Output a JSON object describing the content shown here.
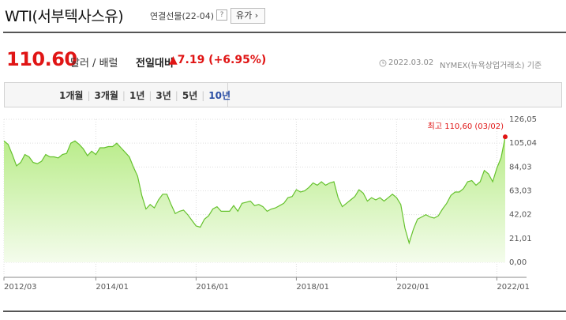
{
  "header": {
    "title": "WTI(서부텍사스유)",
    "subtitle": "연결선물(22-04)",
    "help": "?",
    "category_button": "유가"
  },
  "price": {
    "value": "110.60",
    "unit": "달러 / 배럴",
    "change_label": "전일대비",
    "change": "▲7.19 (+6.95%)",
    "timestamp": "2022.03.02",
    "source": "NYMEX(뉴욕상업거래소) 기준"
  },
  "tabs": {
    "items": [
      "1개월",
      "3개월",
      "1년",
      "3년",
      "5년",
      "10년"
    ],
    "active": 5
  },
  "chart_data": {
    "type": "area",
    "annotation": "최고 110,60 (03/02)",
    "color": "#66c22e",
    "marker_color": "#e01515",
    "xlim": [
      "2012/03",
      "2022/03"
    ],
    "xticks": [
      "2012/03",
      "2014/01",
      "2016/01",
      "2018/01",
      "2020/01",
      "2022/01"
    ],
    "ylim": [
      0,
      126.05
    ],
    "yticks": [
      {
        "value": 0,
        "label": "0,00"
      },
      {
        "value": 21.01,
        "label": "21,01"
      },
      {
        "value": 42.02,
        "label": "42,02"
      },
      {
        "value": 63.03,
        "label": "63,03"
      },
      {
        "value": 84.03,
        "label": "84,03"
      },
      {
        "value": 105.04,
        "label": "105,04"
      },
      {
        "value": 126.05,
        "label": "126,05"
      }
    ],
    "grid": true,
    "x": [
      "2012/03",
      "2012/04",
      "2012/05",
      "2012/06",
      "2012/07",
      "2012/08",
      "2012/09",
      "2012/10",
      "2012/11",
      "2012/12",
      "2013/01",
      "2013/02",
      "2013/03",
      "2013/04",
      "2013/05",
      "2013/06",
      "2013/07",
      "2013/08",
      "2013/09",
      "2013/10",
      "2013/11",
      "2013/12",
      "2014/01",
      "2014/02",
      "2014/03",
      "2014/04",
      "2014/05",
      "2014/06",
      "2014/07",
      "2014/08",
      "2014/09",
      "2014/10",
      "2014/11",
      "2014/12",
      "2015/01",
      "2015/02",
      "2015/03",
      "2015/04",
      "2015/05",
      "2015/06",
      "2015/07",
      "2015/08",
      "2015/09",
      "2015/10",
      "2015/11",
      "2015/12",
      "2016/01",
      "2016/02",
      "2016/03",
      "2016/04",
      "2016/05",
      "2016/06",
      "2016/07",
      "2016/08",
      "2016/09",
      "2016/10",
      "2016/11",
      "2016/12",
      "2017/01",
      "2017/02",
      "2017/03",
      "2017/04",
      "2017/05",
      "2017/06",
      "2017/07",
      "2017/08",
      "2017/09",
      "2017/10",
      "2017/11",
      "2017/12",
      "2018/01",
      "2018/02",
      "2018/03",
      "2018/04",
      "2018/05",
      "2018/06",
      "2018/07",
      "2018/08",
      "2018/09",
      "2018/10",
      "2018/11",
      "2018/12",
      "2019/01",
      "2019/02",
      "2019/03",
      "2019/04",
      "2019/05",
      "2019/06",
      "2019/07",
      "2019/08",
      "2019/09",
      "2019/10",
      "2019/11",
      "2019/12",
      "2020/01",
      "2020/02",
      "2020/03",
      "2020/04",
      "2020/05",
      "2020/06",
      "2020/07",
      "2020/08",
      "2020/09",
      "2020/10",
      "2020/11",
      "2020/12",
      "2021/01",
      "2021/02",
      "2021/03",
      "2021/04",
      "2021/05",
      "2021/06",
      "2021/07",
      "2021/08",
      "2021/09",
      "2021/10",
      "2021/11",
      "2021/12",
      "2022/01",
      "2022/02",
      "2022/03"
    ],
    "values": [
      107,
      104,
      95,
      85,
      88,
      95,
      93,
      88,
      87,
      89,
      95,
      93,
      93,
      92,
      95,
      96,
      105,
      107,
      104,
      100,
      94,
      98,
      95,
      101,
      101,
      102,
      102,
      105,
      101,
      97,
      93,
      84,
      76,
      59,
      47,
      51,
      48,
      55,
      60,
      60,
      51,
      43,
      45,
      46,
      42,
      37,
      32,
      31,
      38,
      41,
      47,
      49,
      45,
      45,
      45,
      50,
      45,
      52,
      53,
      54,
      50,
      51,
      49,
      45,
      47,
      48,
      50,
      52,
      57,
      58,
      64,
      62,
      63,
      66,
      70,
      68,
      71,
      68,
      70,
      71,
      57,
      49,
      52,
      55,
      58,
      64,
      61,
      54,
      57,
      55,
      57,
      54,
      57,
      60,
      57,
      51,
      30,
      17,
      29,
      38,
      40,
      42,
      40,
      39,
      41,
      47,
      52,
      59,
      62,
      62,
      65,
      71,
      72,
      68,
      71,
      81,
      78,
      71,
      83,
      92,
      110.6
    ]
  }
}
